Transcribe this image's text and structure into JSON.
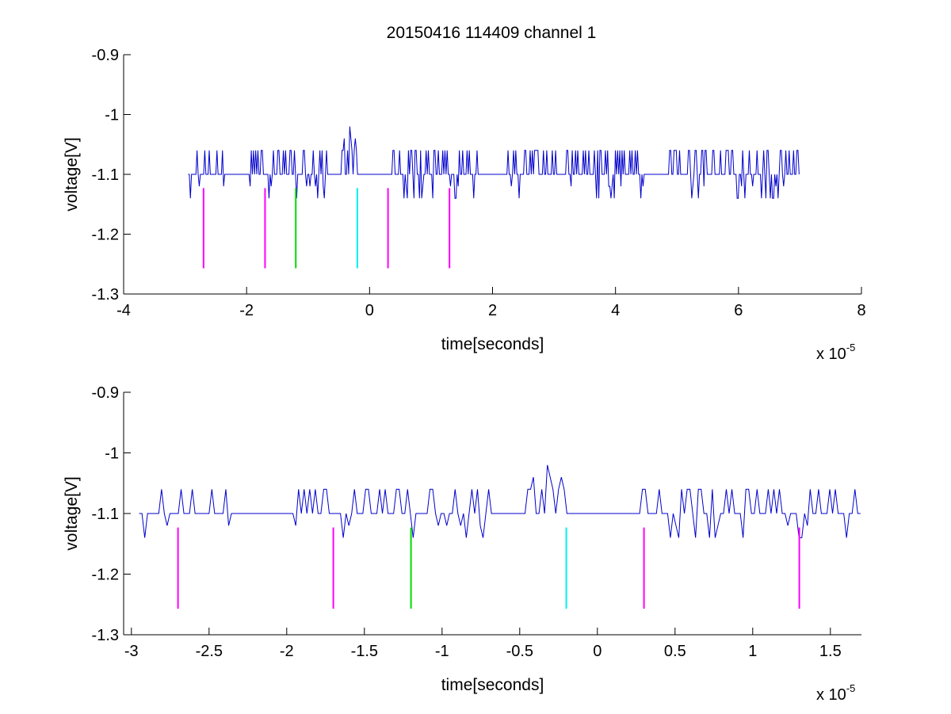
{
  "figure": {
    "title": "20150416 114409 channel 1",
    "trace_color": "#0000cc"
  },
  "chart_data": [
    {
      "type": "line",
      "title": "20150416 114409 channel 1",
      "xlabel": "time[seconds]",
      "ylabel": "voltage[V]",
      "x_exponent_base": "x 10",
      "x_exponent_power": "-5",
      "xlim": [
        -4,
        8
      ],
      "ylim": [
        -1.3,
        -0.9
      ],
      "x_ticks": [
        -4,
        -2,
        0,
        2,
        4,
        6,
        8
      ],
      "x_tick_labels": [
        "-4",
        "-2",
        "0",
        "2",
        "4",
        "6",
        "8"
      ],
      "y_ticks": [
        -0.9,
        -1,
        -1.1,
        -1.2,
        -1.3
      ],
      "y_tick_labels": [
        "-0.9",
        "-1",
        "-1.1",
        "-1.2",
        "-1.3"
      ],
      "trace": {
        "x_range": [
          -2.95,
          7.0
        ],
        "baseline": -1.1,
        "levels": [
          -1.14,
          -1.1,
          -1.06
        ],
        "peak": {
          "x": -0.32,
          "y": -1.02
        },
        "quiet_intervals": [
          [
            -2.35,
            -2.05
          ],
          [
            -0.7,
            -0.45
          ],
          [
            -0.2,
            0.25
          ],
          [
            1.85,
            2.25
          ],
          [
            3.1,
            3.2
          ],
          [
            4.5,
            4.85
          ]
        ]
      },
      "markers": [
        {
          "x": -2.7,
          "y_top": -1.123,
          "y_bottom": -1.257,
          "color": "#ff00ff"
        },
        {
          "x": -1.7,
          "y_top": -1.123,
          "y_bottom": -1.257,
          "color": "#ff00ff"
        },
        {
          "x": -1.2,
          "y_top": -1.123,
          "y_bottom": -1.257,
          "color": "#00dd00"
        },
        {
          "x": -0.2,
          "y_top": -1.123,
          "y_bottom": -1.257,
          "color": "#00eeee"
        },
        {
          "x": 0.3,
          "y_top": -1.123,
          "y_bottom": -1.257,
          "color": "#ff00ff"
        },
        {
          "x": 1.3,
          "y_top": -1.123,
          "y_bottom": -1.257,
          "color": "#ff00ff"
        }
      ],
      "grid": false
    },
    {
      "type": "line",
      "xlabel": "time[seconds]",
      "ylabel": "voltage[V]",
      "x_exponent_base": "x 10",
      "x_exponent_power": "-5",
      "xlim": [
        -3.05,
        1.7
      ],
      "ylim": [
        -1.3,
        -0.9
      ],
      "x_ticks": [
        -3,
        -2.5,
        -2,
        -1.5,
        -1,
        -0.5,
        0,
        0.5,
        1,
        1.5
      ],
      "x_tick_labels": [
        "-3",
        "-2.5",
        "-2",
        "-1.5",
        "-1",
        "-0.5",
        "0",
        "0.5",
        "1",
        "1.5"
      ],
      "y_ticks": [
        -0.9,
        -1,
        -1.1,
        -1.2,
        -1.3
      ],
      "y_tick_labels": [
        "-0.9",
        "-1",
        "-1.1",
        "-1.2",
        "-1.3"
      ],
      "trace": {
        "x_range": [
          -2.95,
          1.7
        ],
        "baseline": -1.1,
        "levels": [
          -1.14,
          -1.1,
          -1.06
        ],
        "peak": {
          "x": -0.32,
          "y": -1.02
        },
        "quiet_intervals": [
          [
            -2.35,
            -2.05
          ],
          [
            -0.7,
            -0.45
          ],
          [
            -0.2,
            0.15
          ]
        ]
      },
      "markers": [
        {
          "x": -2.7,
          "y_top": -1.123,
          "y_bottom": -1.257,
          "color": "#ff00ff"
        },
        {
          "x": -1.7,
          "y_top": -1.123,
          "y_bottom": -1.257,
          "color": "#ff00ff"
        },
        {
          "x": -1.2,
          "y_top": -1.123,
          "y_bottom": -1.257,
          "color": "#00dd00"
        },
        {
          "x": -0.2,
          "y_top": -1.123,
          "y_bottom": -1.257,
          "color": "#00eeee"
        },
        {
          "x": 0.3,
          "y_top": -1.123,
          "y_bottom": -1.257,
          "color": "#ff00ff"
        },
        {
          "x": 1.3,
          "y_top": -1.123,
          "y_bottom": -1.257,
          "color": "#ff00ff"
        }
      ],
      "grid": false
    }
  ]
}
